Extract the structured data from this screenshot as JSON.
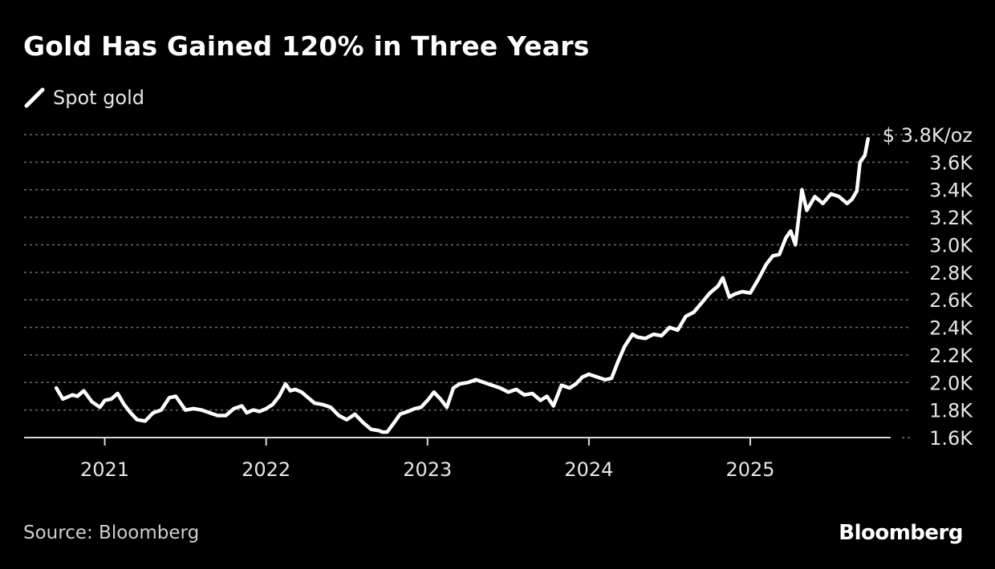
{
  "chart_data": {
    "type": "line",
    "title": "Gold Has Gained 120% in Three Years",
    "series": [
      {
        "name": "Spot gold",
        "color": "#ffffff",
        "x": [
          2020.7,
          2020.74,
          2020.8,
          2020.83,
          2020.87,
          2020.92,
          2020.97,
          2021.0,
          2021.04,
          2021.08,
          2021.12,
          2021.16,
          2021.2,
          2021.25,
          2021.3,
          2021.35,
          2021.4,
          2021.44,
          2021.5,
          2021.55,
          2021.6,
          2021.65,
          2021.7,
          2021.75,
          2021.8,
          2021.85,
          2021.88,
          2021.92,
          2021.96,
          2022.0,
          2022.04,
          2022.08,
          2022.12,
          2022.15,
          2022.18,
          2022.22,
          2022.26,
          2022.3,
          2022.35,
          2022.4,
          2022.45,
          2022.5,
          2022.55,
          2022.6,
          2022.65,
          2022.7,
          2022.72,
          2022.75,
          2022.8,
          2022.83,
          2022.88,
          2022.92,
          2022.96,
          2023.0,
          2023.04,
          2023.08,
          2023.12,
          2023.16,
          2023.2,
          2023.25,
          2023.3,
          2023.35,
          2023.4,
          2023.45,
          2023.5,
          2023.55,
          2023.6,
          2023.65,
          2023.7,
          2023.74,
          2023.78,
          2023.83,
          2023.88,
          2023.92,
          2023.96,
          2024.0,
          2024.05,
          2024.1,
          2024.14,
          2024.18,
          2024.22,
          2024.27,
          2024.3,
          2024.35,
          2024.4,
          2024.45,
          2024.5,
          2024.55,
          2024.6,
          2024.65,
          2024.7,
          2024.75,
          2024.8,
          2024.83,
          2024.87,
          2024.9,
          2024.95,
          2025.0,
          2025.05,
          2025.1,
          2025.14,
          2025.18,
          2025.22,
          2025.25,
          2025.28,
          2025.3,
          2025.32,
          2025.35,
          2025.4,
          2025.45,
          2025.5,
          2025.55,
          2025.6,
          2025.63,
          2025.66,
          2025.68,
          2025.71,
          2025.73
        ],
        "values": [
          1960,
          1880,
          1910,
          1900,
          1940,
          1860,
          1820,
          1870,
          1880,
          1920,
          1840,
          1780,
          1730,
          1720,
          1780,
          1800,
          1890,
          1900,
          1800,
          1810,
          1800,
          1780,
          1760,
          1760,
          1810,
          1830,
          1780,
          1800,
          1790,
          1810,
          1840,
          1900,
          1990,
          1940,
          1950,
          1930,
          1890,
          1850,
          1840,
          1820,
          1760,
          1730,
          1770,
          1710,
          1660,
          1650,
          1640,
          1640,
          1720,
          1770,
          1790,
          1810,
          1820,
          1870,
          1930,
          1880,
          1820,
          1960,
          1990,
          2000,
          2020,
          2000,
          1980,
          1960,
          1930,
          1950,
          1910,
          1920,
          1870,
          1900,
          1830,
          1980,
          1960,
          1990,
          2040,
          2060,
          2040,
          2020,
          2030,
          2150,
          2260,
          2350,
          2330,
          2320,
          2350,
          2340,
          2400,
          2380,
          2480,
          2510,
          2580,
          2650,
          2700,
          2760,
          2620,
          2640,
          2660,
          2650,
          2750,
          2860,
          2920,
          2930,
          3050,
          3100,
          3000,
          3200,
          3400,
          3250,
          3350,
          3300,
          3370,
          3350,
          3300,
          3330,
          3390,
          3600,
          3650,
          3770
        ]
      }
    ],
    "xlim": [
      2020.5,
      2025.87
    ],
    "ylim": [
      1600,
      3850
    ],
    "x_ticks": [
      {
        "value": 2021.0,
        "label": "2021"
      },
      {
        "value": 2022.0,
        "label": "2022"
      },
      {
        "value": 2023.0,
        "label": "2023"
      },
      {
        "value": 2024.0,
        "label": "2024"
      },
      {
        "value": 2025.0,
        "label": "2025"
      }
    ],
    "y_ticks": [
      {
        "value": 1600,
        "label": "1.6K"
      },
      {
        "value": 1800,
        "label": "1.8K"
      },
      {
        "value": 2000,
        "label": "2.0K"
      },
      {
        "value": 2200,
        "label": "2.2K"
      },
      {
        "value": 2400,
        "label": "2.4K"
      },
      {
        "value": 2600,
        "label": "2.6K"
      },
      {
        "value": 2800,
        "label": "2.8K"
      },
      {
        "value": 3000,
        "label": "3.0K"
      },
      {
        "value": 3200,
        "label": "3.2K"
      },
      {
        "value": 3400,
        "label": "3.4K"
      },
      {
        "value": 3600,
        "label": "3.6K"
      },
      {
        "value": 3800,
        "label": "$ 3.8K/oz"
      }
    ],
    "grid": true,
    "grid_style": "dotted",
    "legend_position": "top-left",
    "axis_side": "right",
    "background_color": "#000000",
    "text_color": "#e6e6e6",
    "grid_color": "#6e6e6e"
  },
  "source": "Source: Bloomberg",
  "brand": "Bloomberg"
}
